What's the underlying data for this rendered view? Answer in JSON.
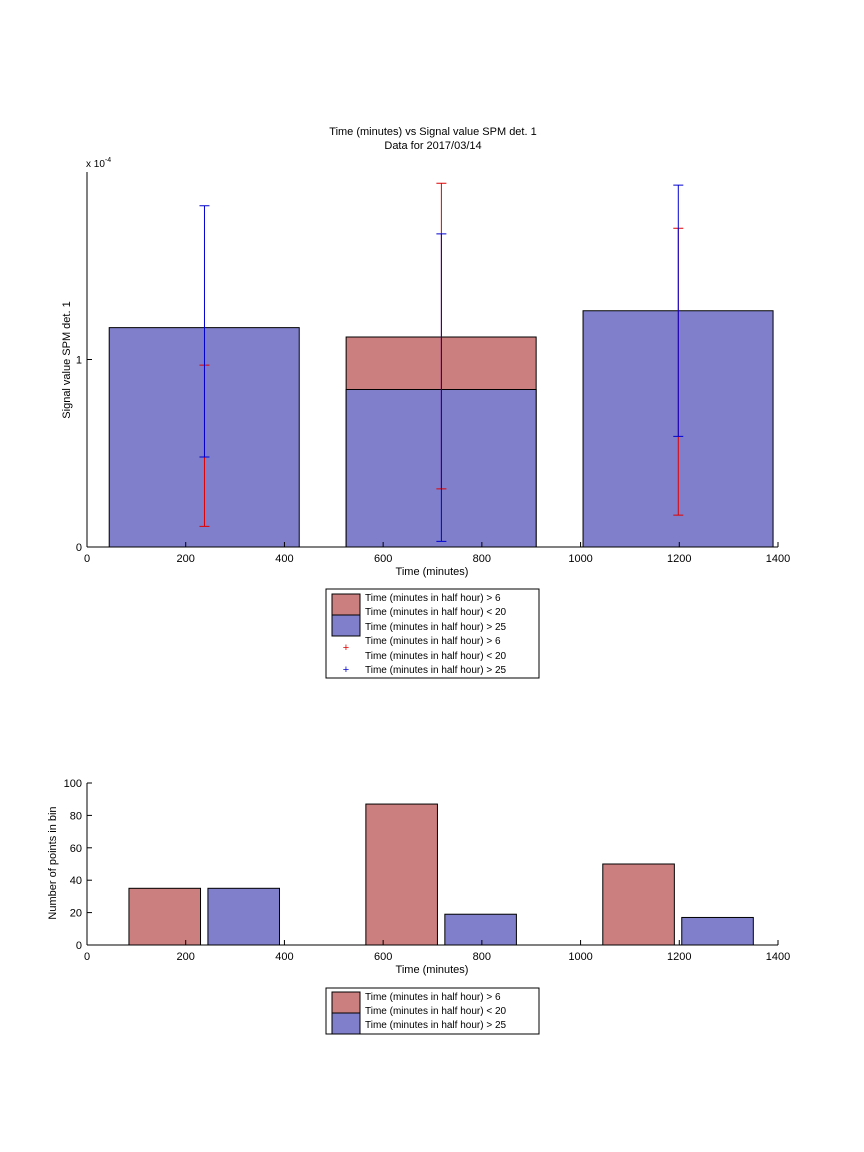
{
  "chart_data": [
    {
      "type": "bar",
      "title": "Time (minutes) vs Signal value SPM det. 1",
      "subtitle": "Data for 2017/03/14",
      "xlabel": "Time (minutes)",
      "ylabel": "Signal value SPM det. 1",
      "y_multiplier": "x 10",
      "y_multiplier_exp": "-4",
      "xlim": [
        0,
        1400
      ],
      "ylim": [
        0,
        2.0
      ],
      "xticks": [
        0,
        200,
        400,
        600,
        800,
        1000,
        1200,
        1400
      ],
      "yticks": [
        0,
        1
      ],
      "grid": false,
      "legend_position": "below",
      "colors": {
        "red": "#cc7f7f",
        "blue": "#7f7fcc",
        "red_err": "#e00000",
        "blue_err": "#0000d0"
      },
      "bars": [
        {
          "x0": 45,
          "x1": 430,
          "red": 1.17,
          "blue": 1.17
        },
        {
          "x0": 525,
          "x1": 910,
          "red": 1.12,
          "blue": 0.84
        },
        {
          "x0": 1005,
          "x1": 1390,
          "red": 1.26,
          "blue": 1.26
        }
      ],
      "errorbars": [
        {
          "series": "red",
          "x": 238,
          "low": 0.11,
          "high": 0.97
        },
        {
          "series": "blue",
          "x": 238,
          "low": 0.48,
          "high": 1.82
        },
        {
          "series": "red",
          "x": 718,
          "low": 0.31,
          "high": 1.94
        },
        {
          "series": "blue",
          "x": 718,
          "low": 0.03,
          "high": 1.67
        },
        {
          "series": "red",
          "x": 1198,
          "low": 0.17,
          "high": 1.7
        },
        {
          "series": "blue",
          "x": 1198,
          "low": 0.59,
          "high": 1.93
        }
      ],
      "legend": [
        "Time (minutes in half hour) > 6",
        "Time (minutes in half hour) < 20",
        "Time (minutes in half hour) > 25",
        "Time (minutes in half hour) > 6",
        "Time (minutes in half hour) < 20",
        "Time (minutes in half hour) > 25"
      ]
    },
    {
      "type": "bar",
      "xlabel": "Time (minutes)",
      "ylabel": "Number of points in bin",
      "xlim": [
        0,
        1400
      ],
      "ylim": [
        0,
        100
      ],
      "xticks": [
        0,
        200,
        400,
        600,
        800,
        1000,
        1200,
        1400
      ],
      "yticks": [
        0,
        20,
        40,
        60,
        80,
        100
      ],
      "grid": false,
      "legend_position": "below",
      "series": [
        {
          "color": "red",
          "bars": [
            {
              "x0": 85,
              "x1": 230,
              "value": 35
            },
            {
              "x0": 565,
              "x1": 710,
              "value": 87
            },
            {
              "x0": 1045,
              "x1": 1190,
              "value": 50
            }
          ]
        },
        {
          "color": "blue",
          "bars": [
            {
              "x0": 245,
              "x1": 390,
              "value": 35
            },
            {
              "x0": 725,
              "x1": 870,
              "value": 19
            },
            {
              "x0": 1205,
              "x1": 1350,
              "value": 17
            }
          ]
        }
      ],
      "legend": [
        "Time (minutes in half hour) > 6",
        "Time (minutes in half hour) < 20",
        "Time (minutes in half hour) > 25"
      ]
    }
  ]
}
